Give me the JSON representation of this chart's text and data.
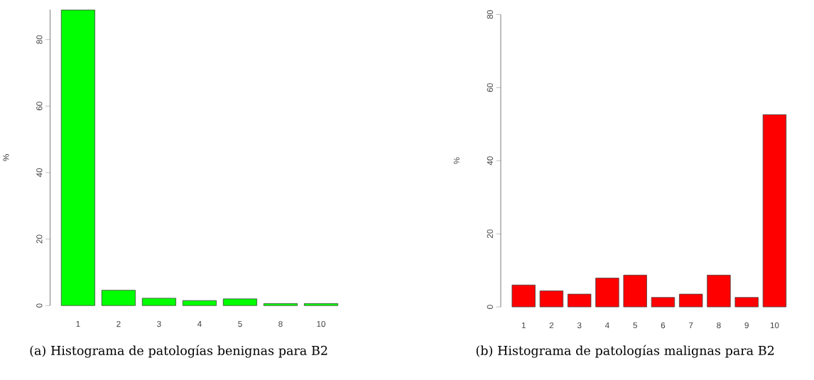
{
  "chart_data": [
    {
      "type": "bar",
      "categories": [
        "1",
        "2",
        "3",
        "4",
        "5",
        "8",
        "10"
      ],
      "values": [
        88.9,
        4.6,
        2.2,
        1.5,
        2.0,
        0.6,
        0.6
      ],
      "color": "#00ff00",
      "ylabel": "%",
      "ylim": [
        0,
        89
      ],
      "yticks": [
        0,
        20,
        40,
        60,
        80
      ],
      "annotations": [
        "(a) Histograma de patologías benignas para B2"
      ]
    },
    {
      "type": "bar",
      "categories": [
        "1",
        "2",
        "3",
        "4",
        "5",
        "6",
        "7",
        "8",
        "9",
        "10"
      ],
      "values": [
        6.0,
        4.4,
        3.5,
        7.9,
        8.7,
        2.6,
        3.5,
        8.7,
        2.6,
        52.6
      ],
      "color": "#ff0000",
      "ylabel": "%",
      "ylim": [
        0,
        80
      ],
      "yticks": [
        0,
        20,
        40,
        60,
        80
      ],
      "annotations": [
        "(b) Histograma de patologías malignas para B2"
      ]
    }
  ]
}
